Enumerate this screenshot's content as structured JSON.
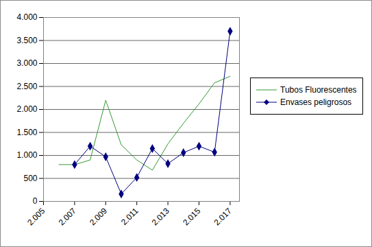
{
  "chart_data": {
    "type": "line",
    "x": [
      2006,
      2007,
      2008,
      2009,
      2010,
      2011,
      2012,
      2013,
      2014,
      2015,
      2016,
      2017
    ],
    "series": [
      {
        "name": "Tubos Fluorescentes",
        "color": "#339933",
        "marker": "none",
        "values": [
          800,
          800,
          900,
          2200,
          1230,
          900,
          680,
          1250,
          1700,
          2120,
          2580,
          2720
        ]
      },
      {
        "name": "Envases peligrosos",
        "color": "#000080",
        "marker": "diamond",
        "values": [
          null,
          800,
          1200,
          970,
          160,
          520,
          1150,
          820,
          1060,
          1200,
          1070,
          3700
        ]
      }
    ],
    "xlim": [
      2005,
      2017.6
    ],
    "xticks": [
      {
        "value": 2005,
        "label": "2.005"
      },
      {
        "value": 2007,
        "label": "2.007"
      },
      {
        "value": 2009,
        "label": "2.009"
      },
      {
        "value": 2011,
        "label": "2.011"
      },
      {
        "value": 2013,
        "label": "2.013"
      },
      {
        "value": 2015,
        "label": "2.015"
      },
      {
        "value": 2017,
        "label": "2.017"
      }
    ],
    "ylim": [
      0,
      4000
    ],
    "yticks": [
      0,
      500,
      {
        "value": 1000,
        "label": "1.000"
      },
      {
        "value": 1500,
        "label": "1.500"
      },
      {
        "value": 2000,
        "label": "2.000"
      },
      {
        "value": 2500,
        "label": "2.500"
      },
      {
        "value": 3000,
        "label": "3.000"
      },
      {
        "value": 3500,
        "label": "3.500"
      },
      {
        "value": 4000,
        "label": "4.000"
      }
    ],
    "grid": true,
    "legend": "right"
  }
}
